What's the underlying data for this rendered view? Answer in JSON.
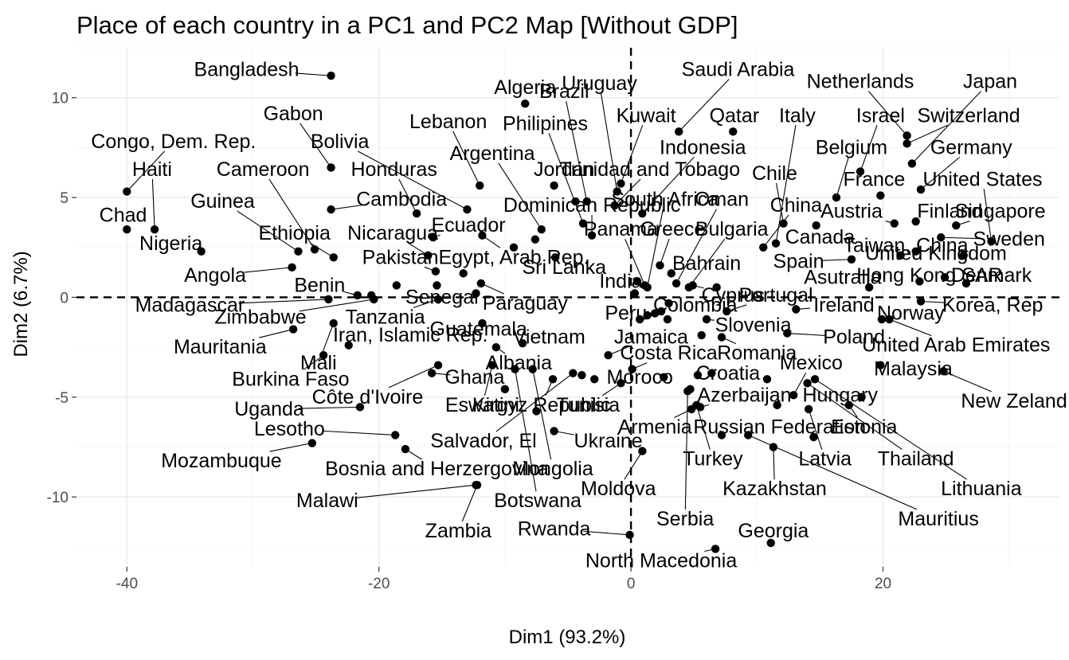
{
  "chart_data": {
    "type": "scatter",
    "title": "Place of each country in a PC1 and PC2 Map [Without GDP]",
    "xlabel": "Dim1 (93.2%)",
    "ylabel": "Dim2 (6.7%)",
    "xlim": [
      -44,
      34
    ],
    "ylim": [
      -13.5,
      12.5
    ],
    "xticks": [
      -40,
      -20,
      0,
      20
    ],
    "yticks": [
      -10,
      -5,
      0,
      5,
      10
    ],
    "reference_lines": {
      "x": 0,
      "y": 0,
      "style": "dashed"
    },
    "grid": true,
    "legend": "none",
    "points": [
      {
        "name": "Bangladesh",
        "x": -23.8,
        "y": 11.1,
        "lx": -30.5,
        "ly": 11.4
      },
      {
        "name": "Algeria",
        "x": -8.4,
        "y": 9.7,
        "lx": -8.4,
        "ly": 10.5
      },
      {
        "name": "Brazil",
        "x": -3.5,
        "y": 4.8,
        "lx": -5.3,
        "ly": 10.3
      },
      {
        "name": "Uruguay",
        "x": -1.1,
        "y": 5.3,
        "lx": -2.5,
        "ly": 10.7
      },
      {
        "name": "Saudi Arabia",
        "x": 3.8,
        "y": 8.3,
        "lx": 8.5,
        "ly": 11.4
      },
      {
        "name": "Netherlands",
        "x": 21.9,
        "y": 8.1,
        "lx": 18.2,
        "ly": 10.8
      },
      {
        "name": "Japan",
        "x": 22.3,
        "y": 6.7,
        "lx": 28.5,
        "ly": 10.8
      },
      {
        "name": "Gabon",
        "x": -23.8,
        "y": 6.5,
        "lx": -26.8,
        "ly": 9.2
      },
      {
        "name": "Lebanon",
        "x": -12.0,
        "y": 5.6,
        "lx": -14.5,
        "ly": 8.8
      },
      {
        "name": "Philipines",
        "x": -3.8,
        "y": 3.7,
        "lx": -6.8,
        "ly": 8.7
      },
      {
        "name": "Kuwait",
        "x": -0.8,
        "y": 5.7,
        "lx": 1.2,
        "ly": 9.1
      },
      {
        "name": "Qatar",
        "x": 8.1,
        "y": 8.3,
        "lx": 8.2,
        "ly": 9.1
      },
      {
        "name": "Italy",
        "x": 11.5,
        "y": 2.7,
        "lx": 13.2,
        "ly": 9.1
      },
      {
        "name": "Israel",
        "x": 18.2,
        "y": 6.3,
        "lx": 19.8,
        "ly": 9.1
      },
      {
        "name": "Switzerland",
        "x": 21.9,
        "y": 7.7,
        "lx": 26.8,
        "ly": 9.1
      },
      {
        "name": "Congo, Dem. Rep.",
        "x": -40.0,
        "y": 5.3,
        "lx": -36.3,
        "ly": 7.8
      },
      {
        "name": "Bolivia",
        "x": -13.0,
        "y": 4.4,
        "lx": -23.1,
        "ly": 7.8
      },
      {
        "name": "Indonesia",
        "x": 0.9,
        "y": 4.2,
        "lx": 5.7,
        "ly": 7.5
      },
      {
        "name": "Belgium",
        "x": 16.3,
        "y": 5.0,
        "lx": 17.5,
        "ly": 7.5
      },
      {
        "name": "Germany",
        "x": 23.0,
        "y": 5.4,
        "lx": 27.0,
        "ly": 7.5
      },
      {
        "name": "Argentina",
        "x": -7.1,
        "y": 3.4,
        "lx": -11.0,
        "ly": 7.2
      },
      {
        "name": "Haiti",
        "x": -37.8,
        "y": 3.4,
        "lx": -38.0,
        "ly": 6.4
      },
      {
        "name": "Cameroon",
        "x": -25.1,
        "y": 2.4,
        "lx": -29.2,
        "ly": 6.4
      },
      {
        "name": "Honduras",
        "x": -17.0,
        "y": 4.2,
        "lx": -18.8,
        "ly": 6.4
      },
      {
        "name": "Jordan",
        "x": -6.1,
        "y": 5.6,
        "lx": -5.3,
        "ly": 6.4
      },
      {
        "name": "Trinidad and Tobago",
        "x": -1.3,
        "y": 4.6,
        "lx": 1.5,
        "ly": 6.4
      },
      {
        "name": "Chile",
        "x": 12.1,
        "y": 3.7,
        "lx": 11.4,
        "ly": 6.2
      },
      {
        "name": "France",
        "x": 19.8,
        "y": 5.1,
        "lx": 19.3,
        "ly": 5.9
      },
      {
        "name": "United States",
        "x": 28.6,
        "y": 2.8,
        "lx": 27.9,
        "ly": 5.9
      },
      {
        "name": "Cambodia",
        "x": -23.8,
        "y": 4.4,
        "lx": -18.2,
        "ly": 4.9
      },
      {
        "name": "Dominican Republic",
        "x": -3.1,
        "y": 3.1,
        "lx": -3.1,
        "ly": 4.6
      },
      {
        "name": "South Africa",
        "x": 1.3,
        "y": 0.5,
        "lx": 2.7,
        "ly": 4.9
      },
      {
        "name": "Oman",
        "x": 3.6,
        "y": 0.7,
        "lx": 7.2,
        "ly": 4.9
      },
      {
        "name": "China",
        "x": 10.5,
        "y": 2.5,
        "lx": 13.1,
        "ly": 4.6
      },
      {
        "name": "Austria",
        "x": 20.9,
        "y": 3.7,
        "lx": 17.5,
        "ly": 4.3
      },
      {
        "name": "Finland",
        "x": 22.6,
        "y": 3.8,
        "lx": 25.3,
        "ly": 4.3
      },
      {
        "name": "Singapore",
        "x": 25.8,
        "y": 3.6,
        "lx": 29.3,
        "ly": 4.3
      },
      {
        "name": "Chad",
        "x": -40.0,
        "y": 3.4,
        "lx": -40.3,
        "ly": 4.1
      },
      {
        "name": "Guinea",
        "x": -26.4,
        "y": 2.3,
        "lx": -32.4,
        "ly": 4.8
      },
      {
        "name": "Ecuador",
        "x": -15.7,
        "y": 3.0,
        "lx": -12.9,
        "ly": 3.6
      },
      {
        "name": "Panama",
        "x": 1.1,
        "y": 0.6,
        "lx": -0.8,
        "ly": 3.4
      },
      {
        "name": "Greece",
        "x": 2.3,
        "y": 1.6,
        "lx": 3.3,
        "ly": 3.4
      },
      {
        "name": "Bulgaria",
        "x": 4.6,
        "y": 0.5,
        "lx": 8.0,
        "ly": 3.4
      },
      {
        "name": "Canada",
        "x": 14.7,
        "y": 3.6,
        "lx": 15.0,
        "ly": 3.0
      },
      {
        "name": "Taiwan, China",
        "x": 21.4,
        "y": 2.1,
        "lx": 21.8,
        "ly": 2.6
      },
      {
        "name": "Sweden",
        "x": 24.6,
        "y": 3.0,
        "lx": 30.0,
        "ly": 2.9
      },
      {
        "name": "Ethiopia",
        "x": -23.6,
        "y": 2.0,
        "lx": -26.7,
        "ly": 3.2
      },
      {
        "name": "Nicaragua",
        "x": -16.1,
        "y": 2.1,
        "lx": -18.9,
        "ly": 3.2
      },
      {
        "name": "Nigeria",
        "x": -34.1,
        "y": 2.3,
        "lx": -36.5,
        "ly": 2.7
      },
      {
        "name": "Pakistan",
        "x": -15.5,
        "y": 1.3,
        "lx": -18.3,
        "ly": 2.0
      },
      {
        "name": "Egypt, Arab Rep.",
        "x": -11.8,
        "y": 3.1,
        "lx": -9.3,
        "ly": 2.0
      },
      {
        "name": "Sri Lanka",
        "x": -6.0,
        "y": 2.0,
        "lx": -5.3,
        "ly": 1.5
      },
      {
        "name": "Bahrain",
        "x": 3.2,
        "y": 1.2,
        "lx": 6.0,
        "ly": 1.7
      },
      {
        "name": "Spain",
        "x": 17.5,
        "y": 1.9,
        "lx": 13.3,
        "ly": 1.8
      },
      {
        "name": "United Kingdom",
        "x": 26.4,
        "y": 2.1,
        "lx": 24.2,
        "ly": 2.2
      },
      {
        "name": "Angola",
        "x": -26.9,
        "y": 1.5,
        "lx": -33.0,
        "ly": 1.1
      },
      {
        "name": "India",
        "x": 0.3,
        "y": 0.2,
        "lx": -0.8,
        "ly": 0.8
      },
      {
        "name": "Asutralia",
        "x": 18.9,
        "y": 0.5,
        "lx": 16.8,
        "ly": 1.0
      },
      {
        "name": "Hong Kong SAR",
        "x": 22.9,
        "y": 0.8,
        "lx": 23.7,
        "ly": 1.1
      },
      {
        "name": "Denmark",
        "x": 26.6,
        "y": 0.7,
        "lx": 28.6,
        "ly": 1.1
      },
      {
        "name": "Benin",
        "x": -21.7,
        "y": 0.1,
        "lx": -24.7,
        "ly": 0.6
      },
      {
        "name": "Madagascar",
        "x": -24.0,
        "y": -0.1,
        "lx": -35.0,
        "ly": -0.4
      },
      {
        "name": "Senegal",
        "x": -12.3,
        "y": 0.2,
        "lx": -15.0,
        "ly": 0.0
      },
      {
        "name": "Paraguay",
        "x": -11.9,
        "y": 0.7,
        "lx": -8.4,
        "ly": -0.3
      },
      {
        "name": "Cyprus",
        "x": 4.9,
        "y": 0.6,
        "lx": 8.1,
        "ly": 0.1
      },
      {
        "name": "Portugal",
        "x": 7.6,
        "y": -0.7,
        "lx": 11.5,
        "ly": 0.1
      },
      {
        "name": "Zimbabwe",
        "x": -20.4,
        "y": -0.1,
        "lx": -29.4,
        "ly": -1.0
      },
      {
        "name": "Tanzania",
        "x": -15.3,
        "y": -0.1,
        "lx": -19.5,
        "ly": -1.0
      },
      {
        "name": "Peru",
        "x": 1.3,
        "y": -0.9,
        "lx": -0.4,
        "ly": -0.8
      },
      {
        "name": "Colombia",
        "x": 2.4,
        "y": -0.7,
        "lx": 5.1,
        "ly": -0.4
      },
      {
        "name": "Ireland",
        "x": 13.1,
        "y": -0.6,
        "lx": 16.9,
        "ly": -0.4
      },
      {
        "name": "Norway",
        "x": 19.9,
        "y": -1.1,
        "lx": 22.2,
        "ly": -0.8
      },
      {
        "name": "Korea, Rep",
        "x": 23.0,
        "y": -0.2,
        "lx": 28.7,
        "ly": -0.4
      },
      {
        "name": "Slovenia",
        "x": 6.0,
        "y": -1.1,
        "lx": 9.7,
        "ly": -1.4
      },
      {
        "name": "Mauritania",
        "x": -26.8,
        "y": -1.6,
        "lx": -32.6,
        "ly": -2.5
      },
      {
        "name": "Iran, Islamic Rep.",
        "x": -22.4,
        "y": -2.4,
        "lx": -17.5,
        "ly": -1.9
      },
      {
        "name": "Guatemala",
        "x": -11.8,
        "y": -1.3,
        "lx": -12.1,
        "ly": -1.6
      },
      {
        "name": "Vietnam",
        "x": -8.6,
        "y": -2.3,
        "lx": -6.5,
        "ly": -2.0
      },
      {
        "name": "Jamaica",
        "x": -1.8,
        "y": -2.9,
        "lx": 1.6,
        "ly": -2.0
      },
      {
        "name": "Poland",
        "x": 12.4,
        "y": -1.8,
        "lx": 17.7,
        "ly": -2.0
      },
      {
        "name": "United Arab Emirates",
        "x": 20.5,
        "y": -1.1,
        "lx": 25.8,
        "ly": -2.4
      },
      {
        "name": "Mali",
        "x": -23.6,
        "y": -1.3,
        "lx": -24.8,
        "ly": -3.3
      },
      {
        "name": "Albania",
        "x": -10.7,
        "y": -2.5,
        "lx": -8.9,
        "ly": -3.3
      },
      {
        "name": "Costa Rica",
        "x": 0.1,
        "y": -3.6,
        "lx": 3.0,
        "ly": -2.8
      },
      {
        "name": "Romania",
        "x": 7.2,
        "y": -2.0,
        "lx": 10.0,
        "ly": -2.8
      },
      {
        "name": "Mexico",
        "x": 12.9,
        "y": -4.9,
        "lx": 14.3,
        "ly": -3.3
      },
      {
        "name": "Malaysia",
        "x": 19.8,
        "y": -3.4,
        "lx": 22.4,
        "ly": -3.6
      },
      {
        "name": "Burkina Faso",
        "x": -24.4,
        "y": -2.9,
        "lx": -27.0,
        "ly": -4.1
      },
      {
        "name": "Ghana",
        "x": -15.8,
        "y": -3.8,
        "lx": -12.4,
        "ly": -4.0
      },
      {
        "name": "Moroco",
        "x": 2.6,
        "y": -4.0,
        "lx": 0.7,
        "ly": -4.0
      },
      {
        "name": "Croatia",
        "x": 5.3,
        "y": -3.9,
        "lx": 7.7,
        "ly": -3.8
      },
      {
        "name": "New Zeland",
        "x": 24.8,
        "y": -3.7,
        "lx": 30.4,
        "ly": -5.2
      },
      {
        "name": "Côte d'Ivoire",
        "x": -15.3,
        "y": -3.4,
        "lx": -20.9,
        "ly": -5.0
      },
      {
        "name": "Azerbaijan",
        "x": 5.5,
        "y": -5.5,
        "lx": 9.0,
        "ly": -4.9
      },
      {
        "name": "Hungary",
        "x": 18.3,
        "y": -5.0,
        "lx": 16.6,
        "ly": -4.9
      },
      {
        "name": "Uganda",
        "x": -21.5,
        "y": -5.5,
        "lx": -28.7,
        "ly": -5.6
      },
      {
        "name": "Eswatini",
        "x": -11.0,
        "y": -3.4,
        "lx": -11.8,
        "ly": -5.4
      },
      {
        "name": "Kirgyz Republic",
        "x": -6.2,
        "y": -4.1,
        "lx": -7.1,
        "ly": -5.4
      },
      {
        "name": "Tunisia",
        "x": -0.8,
        "y": -4.3,
        "lx": -3.4,
        "ly": -5.4
      },
      {
        "name": "Estonia",
        "x": 17.3,
        "y": -5.4,
        "lx": 18.5,
        "ly": -6.5
      },
      {
        "name": "Lesotho",
        "x": -18.7,
        "y": -6.9,
        "lx": -27.1,
        "ly": -6.6
      },
      {
        "name": "Armenia",
        "x": 4.8,
        "y": -5.6,
        "lx": 1.9,
        "ly": -6.5
      },
      {
        "name": "Russian Federation",
        "x": 7.2,
        "y": -6.9,
        "lx": 11.8,
        "ly": -6.5
      },
      {
        "name": "Salvador, El",
        "x": -4.6,
        "y": -3.8,
        "lx": -11.7,
        "ly": -7.2
      },
      {
        "name": "Ukraine",
        "x": -6.1,
        "y": -6.7,
        "lx": -1.8,
        "ly": -7.2
      },
      {
        "name": "Mozambuque",
        "x": -25.3,
        "y": -7.3,
        "lx": -32.5,
        "ly": -8.2
      },
      {
        "name": "Turkey",
        "x": 5.2,
        "y": -5.4,
        "lx": 6.5,
        "ly": -8.1
      },
      {
        "name": "Latvia",
        "x": 14.1,
        "y": -5.6,
        "lx": 15.4,
        "ly": -8.1
      },
      {
        "name": "Thailand",
        "x": 14.0,
        "y": -4.3,
        "lx": 22.6,
        "ly": -8.1
      },
      {
        "name": "Bosnia and Herzergovina",
        "x": -17.9,
        "y": -7.6,
        "lx": -15.4,
        "ly": -8.6
      },
      {
        "name": "Mongolia",
        "x": -7.8,
        "y": -3.6,
        "lx": -6.2,
        "ly": -8.6
      },
      {
        "name": "Moldova",
        "x": 0.9,
        "y": -7.7,
        "lx": -1.0,
        "ly": -9.6
      },
      {
        "name": "Kazakhstan",
        "x": 11.3,
        "y": -7.5,
        "lx": 11.4,
        "ly": -9.6
      },
      {
        "name": "Lithuania",
        "x": 14.6,
        "y": -4.1,
        "lx": 27.8,
        "ly": -9.6
      },
      {
        "name": "Malawi",
        "x": -12.3,
        "y": -9.4,
        "lx": -24.1,
        "ly": -10.2
      },
      {
        "name": "Botswana",
        "x": -9.2,
        "y": -3.6,
        "lx": -7.4,
        "ly": -10.2
      },
      {
        "name": "Serbia",
        "x": 4.5,
        "y": -4.7,
        "lx": 4.3,
        "ly": -11.1
      },
      {
        "name": "Mauritius",
        "x": 9.3,
        "y": -6.9,
        "lx": 24.4,
        "ly": -11.1
      },
      {
        "name": "Zambia",
        "x": -12.2,
        "y": -9.4,
        "lx": -13.7,
        "ly": -11.7
      },
      {
        "name": "Rwanda",
        "x": -0.1,
        "y": -11.9,
        "lx": -6.1,
        "ly": -11.6
      },
      {
        "name": "Georgia",
        "x": 11.1,
        "y": -12.3,
        "lx": 11.3,
        "ly": -11.7
      },
      {
        "name": "North Macedonia",
        "x": 6.7,
        "y": -12.6,
        "lx": 2.4,
        "ly": -13.2
      }
    ],
    "extra_points": [
      {
        "x": -15.4,
        "y": 0.6
      },
      {
        "x": -18.6,
        "y": 0.6
      },
      {
        "x": -20.6,
        "y": 0.1
      },
      {
        "x": -13.3,
        "y": 1.2
      },
      {
        "x": -4.4,
        "y": 4.8
      },
      {
        "x": -9.3,
        "y": 2.5
      },
      {
        "x": -7.6,
        "y": 2.9
      },
      {
        "x": 0.5,
        "y": 0.8
      },
      {
        "x": 3.0,
        "y": -0.3
      },
      {
        "x": 1.9,
        "y": -0.8
      },
      {
        "x": 5.6,
        "y": -1.9
      },
      {
        "x": 4.7,
        "y": -4.6
      },
      {
        "x": 6.4,
        "y": -3.8
      },
      {
        "x": 10.8,
        "y": -4.1
      },
      {
        "x": 22.6,
        "y": 2.3
      },
      {
        "x": 24.9,
        "y": 1.0
      },
      {
        "x": 6.8,
        "y": 0.5
      },
      {
        "x": 0.7,
        "y": -1.1
      },
      {
        "x": 2.9,
        "y": -1.1
      },
      {
        "x": -7.5,
        "y": -5.7
      },
      {
        "x": -10.0,
        "y": -4.6
      },
      {
        "x": -3.9,
        "y": -3.9
      },
      {
        "x": 14.5,
        "y": -7.0
      },
      {
        "x": -2.9,
        "y": -4.1
      },
      {
        "x": 11.6,
        "y": -5.4
      }
    ]
  }
}
